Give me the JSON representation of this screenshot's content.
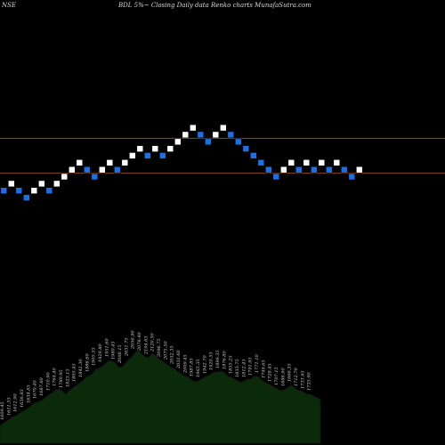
{
  "header": {
    "exchange": "NSE",
    "title": "BDL  5%~ Closing Daily data  Renko  charts MunafaSutra.com"
  },
  "colors": {
    "background": "#000000",
    "up_brick": "#ffffff",
    "down_brick": "#1e6fe6",
    "brick_border": "#000000",
    "ref_line": "#8a4a22",
    "volume_fill": "#0a2a0a",
    "volume_line": "#151515",
    "label_color": "#cfcfcf"
  },
  "chart_data": {
    "type": "renko",
    "bricks": [
      {
        "level": 8,
        "dir": "down"
      },
      {
        "level": 9,
        "dir": "up"
      },
      {
        "level": 8,
        "dir": "down"
      },
      {
        "level": 7,
        "dir": "down"
      },
      {
        "level": 8,
        "dir": "up"
      },
      {
        "level": 9,
        "dir": "up"
      },
      {
        "level": 8,
        "dir": "down"
      },
      {
        "level": 9,
        "dir": "up"
      },
      {
        "level": 10,
        "dir": "up"
      },
      {
        "level": 11,
        "dir": "up"
      },
      {
        "level": 12,
        "dir": "up"
      },
      {
        "level": 11,
        "dir": "down"
      },
      {
        "level": 10,
        "dir": "down"
      },
      {
        "level": 11,
        "dir": "up"
      },
      {
        "level": 12,
        "dir": "up"
      },
      {
        "level": 11,
        "dir": "down"
      },
      {
        "level": 12,
        "dir": "up"
      },
      {
        "level": 13,
        "dir": "up"
      },
      {
        "level": 14,
        "dir": "up"
      },
      {
        "level": 13,
        "dir": "down"
      },
      {
        "level": 14,
        "dir": "up"
      },
      {
        "level": 13,
        "dir": "down"
      },
      {
        "level": 14,
        "dir": "up"
      },
      {
        "level": 15,
        "dir": "up"
      },
      {
        "level": 16,
        "dir": "up"
      },
      {
        "level": 17,
        "dir": "up"
      },
      {
        "level": 16,
        "dir": "down"
      },
      {
        "level": 15,
        "dir": "down"
      },
      {
        "level": 16,
        "dir": "up"
      },
      {
        "level": 17,
        "dir": "up"
      },
      {
        "level": 16,
        "dir": "down"
      },
      {
        "level": 15,
        "dir": "down"
      },
      {
        "level": 14,
        "dir": "down"
      },
      {
        "level": 13,
        "dir": "down"
      },
      {
        "level": 12,
        "dir": "down"
      },
      {
        "level": 11,
        "dir": "down"
      },
      {
        "level": 10,
        "dir": "down"
      },
      {
        "level": 11,
        "dir": "up"
      },
      {
        "level": 12,
        "dir": "up"
      },
      {
        "level": 11,
        "dir": "down"
      },
      {
        "level": 12,
        "dir": "up"
      },
      {
        "level": 11,
        "dir": "down"
      },
      {
        "level": 12,
        "dir": "up"
      },
      {
        "level": 11,
        "dir": "down"
      },
      {
        "level": 12,
        "dir": "up"
      },
      {
        "level": 11,
        "dir": "down"
      },
      {
        "level": 10,
        "dir": "down"
      },
      {
        "level": 11,
        "dir": "up"
      }
    ],
    "ref_lines": [
      {
        "level": 15.5
      },
      {
        "level": 10.5
      }
    ],
    "volume_profile": [
      20,
      22,
      25,
      27,
      30,
      31,
      34,
      36,
      38,
      41,
      44,
      46,
      47,
      49,
      52,
      55,
      57,
      60,
      61,
      58,
      55,
      59,
      62,
      65,
      67,
      70,
      74,
      76,
      78,
      83,
      84,
      87,
      90,
      93,
      92,
      90,
      85,
      86,
      90,
      94,
      97,
      102,
      104,
      100,
      97,
      96,
      101,
      99,
      95,
      93,
      90,
      87,
      85,
      83,
      80,
      78,
      75,
      74,
      71,
      69,
      70,
      72,
      74,
      76,
      78,
      80,
      80,
      81,
      79,
      75,
      74,
      72,
      70,
      68,
      70,
      72,
      72,
      75,
      75,
      72,
      69,
      67,
      65,
      63,
      61,
      59,
      60,
      62,
      65,
      63,
      60,
      59,
      57,
      55,
      55,
      53,
      51,
      49
    ],
    "volume_labels": [
      "1609.45",
      "1611.55",
      "1612.90",
      "1656.83",
      "1634.85",
      "1670.40",
      "1687.60",
      "1710.90",
      "1764.40",
      "1789.95",
      "1823.15",
      "1805.45",
      "1842.30",
      "1886.60",
      "1905.55",
      "1929.80",
      "1951.60",
      "1980.45",
      "2008.15",
      "2031.75",
      "2056.90",
      "2078.40",
      "2104.65",
      "2120.30",
      "2096.75",
      "2075.50",
      "2052.35",
      "2031.60",
      "2009.45",
      "1987.85",
      "1965.35",
      "1942.70",
      "1920.55",
      "1899.35",
      "1876.80",
      "1855.25",
      "1833.75",
      "1812.45",
      "1791.95",
      "1771.10",
      "1749.65",
      "1728.45",
      "1707.15",
      "1686.90",
      "1666.35",
      "1712.70",
      "1733.95",
      "1735.90"
    ]
  }
}
